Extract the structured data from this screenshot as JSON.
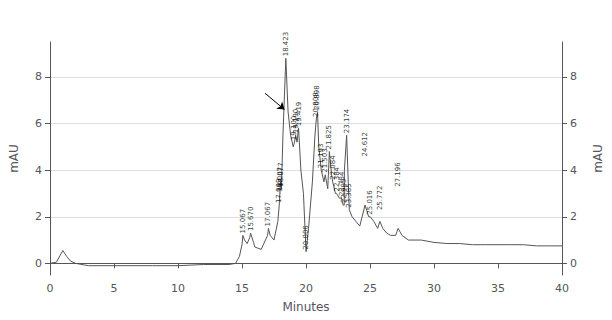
{
  "chart_data": {
    "type": "line",
    "xlabel": "Minutes",
    "ylabel": "mAU",
    "y2label": "mAU",
    "color": "#555555",
    "xlim": [
      0,
      40
    ],
    "xticks": [
      0,
      5,
      10,
      15,
      20,
      25,
      30,
      35,
      40
    ],
    "ylim": [
      -0.5,
      9.5
    ],
    "yticks": [
      0,
      2,
      4,
      6,
      8
    ],
    "y2lim": [
      -0.5,
      9.5
    ],
    "y2ticks": [
      0,
      2,
      4,
      6,
      8
    ],
    "grid": true,
    "x": [
      0,
      0.5,
      1.0,
      1.3,
      1.6,
      2.0,
      3.0,
      5.0,
      8.0,
      10.0,
      12.0,
      14.0,
      14.5,
      14.8,
      15.0,
      15.067,
      15.2,
      15.4,
      15.6,
      15.67,
      15.9,
      16.0,
      16.5,
      17.0,
      17.067,
      17.2,
      17.5,
      17.8,
      17.909,
      18.0,
      18.077,
      18.2,
      18.423,
      18.6,
      18.8,
      19.0,
      19.1,
      19.19,
      19.3,
      19.419,
      19.6,
      19.8,
      20.006,
      20.2,
      20.5,
      20.7,
      20.808,
      20.898,
      21.0,
      21.193,
      21.4,
      21.503,
      21.7,
      21.825,
      22.0,
      22.084,
      22.3,
      22.384,
      22.6,
      22.784,
      22.9,
      22.985,
      23.0,
      23.174,
      23.3,
      23.385,
      23.6,
      23.9,
      24.2,
      24.612,
      24.9,
      25.016,
      25.3,
      25.6,
      25.772,
      26.0,
      26.3,
      26.6,
      27.0,
      27.196,
      27.5,
      28.0,
      29.0,
      30.0,
      31.0,
      32.0,
      33.0,
      34.0,
      35.0,
      36.0,
      37.0,
      38.0,
      39.0,
      40.0
    ],
    "values": [
      0,
      0.05,
      0.55,
      0.3,
      0.1,
      0.0,
      -0.1,
      -0.1,
      -0.1,
      -0.1,
      -0.05,
      -0.05,
      0.0,
      0.3,
      0.8,
      1.2,
      1.0,
      0.85,
      1.1,
      1.3,
      0.9,
      0.7,
      0.6,
      1.2,
      1.5,
      1.2,
      1.0,
      1.8,
      2.5,
      3.5,
      3.2,
      5.5,
      8.8,
      6.5,
      5.5,
      5.0,
      5.2,
      5.5,
      5.2,
      5.8,
      4.0,
      3.0,
      0.5,
      1.5,
      3.5,
      5.5,
      6.2,
      6.5,
      5.0,
      4.0,
      3.5,
      3.8,
      3.2,
      4.8,
      3.8,
      3.5,
      3.0,
      3.0,
      2.8,
      2.8,
      2.5,
      2.5,
      4.0,
      5.5,
      3.5,
      2.3,
      2.0,
      1.8,
      1.6,
      2.5,
      2.0,
      2.0,
      1.8,
      1.5,
      1.8,
      1.5,
      1.3,
      1.2,
      1.2,
      1.5,
      1.2,
      1.0,
      1.0,
      0.9,
      0.85,
      0.85,
      0.8,
      0.8,
      0.8,
      0.8,
      0.8,
      0.75,
      0.75,
      0.75
    ],
    "annotations": [
      {
        "x": 15.067,
        "y": 1.2,
        "text": "15.067"
      },
      {
        "x": 15.67,
        "y": 1.3,
        "text": "15.670"
      },
      {
        "x": 17.067,
        "y": 1.5,
        "text": "17.067"
      },
      {
        "x": 17.909,
        "y": 2.5,
        "text": "17.909"
      },
      {
        "x": 18.0,
        "y": 3.0,
        "text": "18.007"
      },
      {
        "x": 18.077,
        "y": 3.2,
        "text": "18.077"
      },
      {
        "x": 18.423,
        "y": 8.8,
        "text": "18.423"
      },
      {
        "x": 19.1,
        "y": 5.2,
        "text": "19.100"
      },
      {
        "x": 19.19,
        "y": 5.5,
        "text": "19.190"
      },
      {
        "x": 19.419,
        "y": 5.8,
        "text": "19.419"
      },
      {
        "x": 20.006,
        "y": 0.5,
        "text": "20.006"
      },
      {
        "x": 20.808,
        "y": 6.2,
        "text": "20.808"
      },
      {
        "x": 20.898,
        "y": 6.5,
        "text": "20.898"
      },
      {
        "x": 21.193,
        "y": 4.0,
        "text": "21.193"
      },
      {
        "x": 21.503,
        "y": 3.8,
        "text": "21.503"
      },
      {
        "x": 21.825,
        "y": 4.8,
        "text": "21.825"
      },
      {
        "x": 22.084,
        "y": 3.5,
        "text": "22.084"
      },
      {
        "x": 22.384,
        "y": 3.0,
        "text": "22.384"
      },
      {
        "x": 22.784,
        "y": 2.8,
        "text": "22.784"
      },
      {
        "x": 22.985,
        "y": 2.5,
        "text": "22.985"
      },
      {
        "x": 23.174,
        "y": 5.5,
        "text": "23.174"
      },
      {
        "x": 23.385,
        "y": 2.3,
        "text": "23.385"
      },
      {
        "x": 24.612,
        "y": 4.5,
        "text": "24.612"
      },
      {
        "x": 25.016,
        "y": 2.0,
        "text": "25.016"
      },
      {
        "x": 25.772,
        "y": 2.2,
        "text": "25.772"
      },
      {
        "x": 27.196,
        "y": 3.2,
        "text": "27.196"
      }
    ],
    "arrows": [
      {
        "x_start": 16.8,
        "y_start": 7.3,
        "x_end": 18.32,
        "y_end": 6.6
      }
    ]
  }
}
